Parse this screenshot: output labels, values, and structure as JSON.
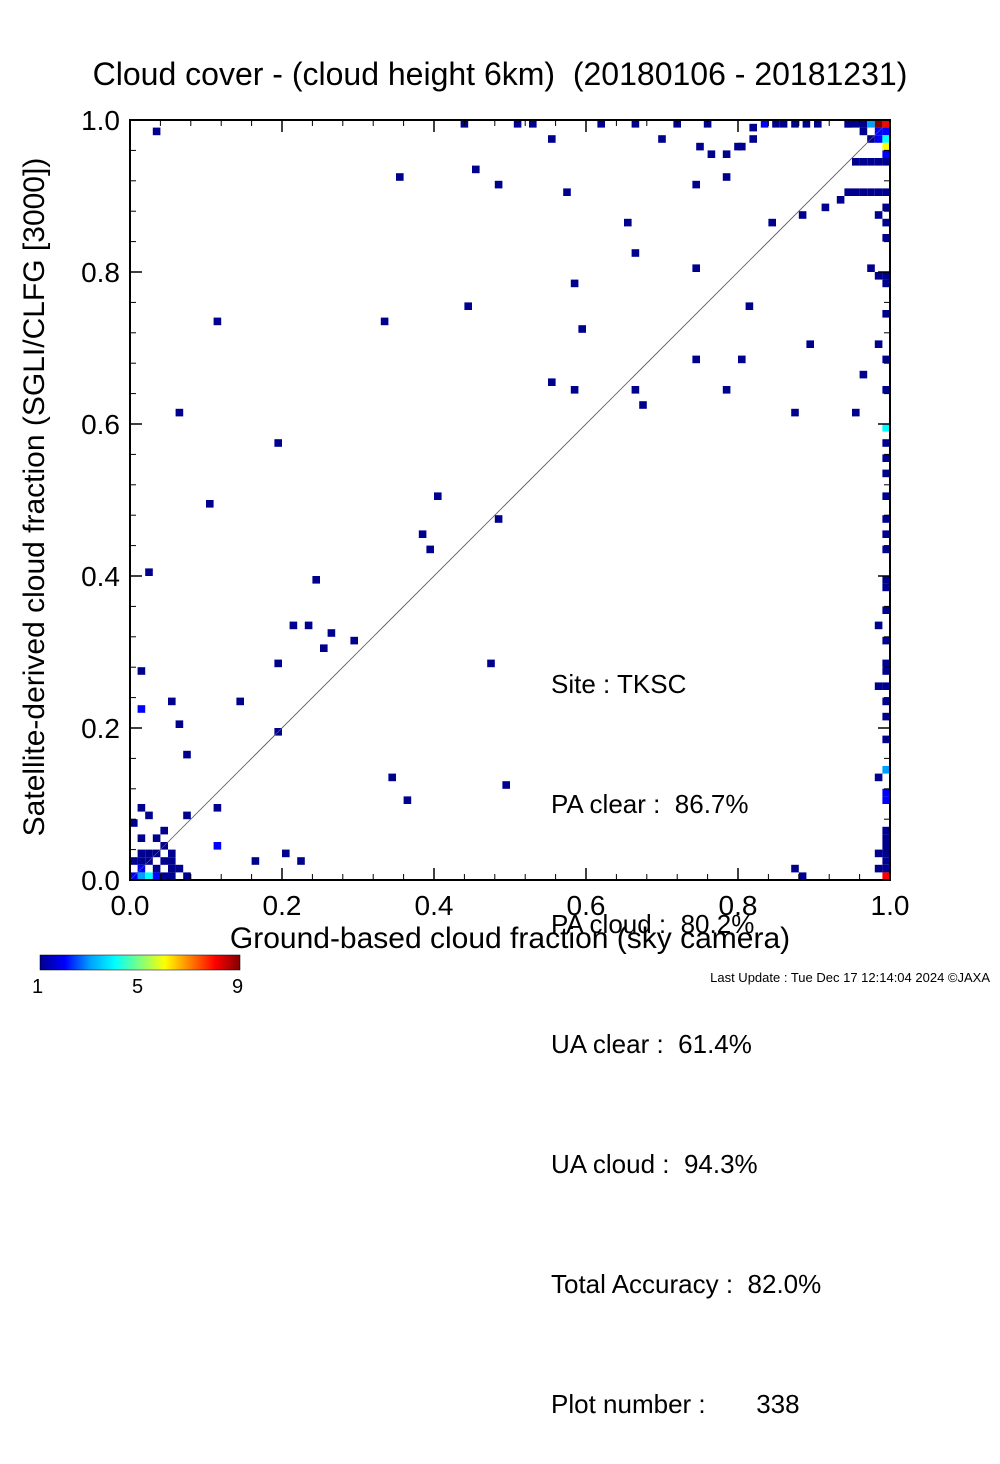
{
  "title": "Cloud cover - (cloud height 6km)  (20180106 - 20181231)",
  "footer": "Last Update : Tue Dec 17 12:14:04 2024  ©JAXA",
  "stats": {
    "site": "Site : TKSC",
    "pa_clear": "PA clear :  86.7%",
    "pa_cloud": "PA cloud :  80.2%",
    "ua_clear": "UA clear :  61.4%",
    "ua_cloud": "UA cloud :  94.3%",
    "total_accuracy": "Total Accuracy :  82.0%",
    "plot_number": "Plot number :       338"
  },
  "colorbar": {
    "min_label": "1",
    "mid_label": "5",
    "max_label": "9",
    "colors": [
      "#00008f",
      "#0000ff",
      "#00a0ff",
      "#00ffff",
      "#7fff7f",
      "#ffff00",
      "#ff8000",
      "#ff0000",
      "#800000"
    ]
  },
  "chart_data": {
    "type": "heatmap",
    "xlabel": "Ground-based cloud fraction (sky camera)",
    "ylabel": "Satellite-derived cloud fraction (SGLI/CLFG [3000])",
    "xlim": [
      0.0,
      1.0
    ],
    "ylim": [
      0.0,
      1.0
    ],
    "xticks": [
      "0.0",
      "0.2",
      "0.4",
      "0.6",
      "0.8",
      "1.0"
    ],
    "yticks": [
      "0.0",
      "0.2",
      "0.4",
      "0.6",
      "0.8",
      "1.0"
    ],
    "bin_size": 0.01,
    "reference_line": "1:1 diagonal",
    "color_scale": [
      1,
      9
    ],
    "points": [
      [
        0.035,
        0.985,
        1
      ],
      [
        0.44,
        0.995,
        1
      ],
      [
        0.51,
        0.995,
        1
      ],
      [
        0.53,
        0.995,
        1
      ],
      [
        0.62,
        0.995,
        1
      ],
      [
        0.665,
        0.995,
        1
      ],
      [
        0.72,
        0.995,
        1
      ],
      [
        0.76,
        0.995,
        1
      ],
      [
        0.82,
        0.99,
        1
      ],
      [
        0.835,
        0.995,
        2
      ],
      [
        0.86,
        0.995,
        1
      ],
      [
        0.875,
        0.995,
        1
      ],
      [
        0.89,
        0.995,
        1
      ],
      [
        0.905,
        0.995,
        1
      ],
      [
        0.945,
        0.995,
        2
      ],
      [
        0.955,
        0.995,
        1
      ],
      [
        0.965,
        0.995,
        1
      ],
      [
        0.975,
        0.995,
        3
      ],
      [
        0.985,
        0.995,
        9
      ],
      [
        0.995,
        0.995,
        8
      ],
      [
        0.965,
        0.985,
        1
      ],
      [
        0.985,
        0.985,
        2
      ],
      [
        0.995,
        0.985,
        2
      ],
      [
        0.975,
        0.975,
        1
      ],
      [
        0.985,
        0.975,
        2
      ],
      [
        0.995,
        0.975,
        4
      ],
      [
        0.995,
        0.965,
        6
      ],
      [
        0.995,
        0.955,
        2
      ],
      [
        0.955,
        0.945,
        1
      ],
      [
        0.965,
        0.945,
        1
      ],
      [
        0.975,
        0.945,
        1
      ],
      [
        0.985,
        0.945,
        1
      ],
      [
        0.995,
        0.945,
        1
      ],
      [
        0.955,
        0.905,
        1
      ],
      [
        0.965,
        0.905,
        1
      ],
      [
        0.975,
        0.905,
        1
      ],
      [
        0.985,
        0.905,
        1
      ],
      [
        0.995,
        0.905,
        1
      ],
      [
        0.945,
        0.905,
        1
      ],
      [
        0.935,
        0.895,
        1
      ],
      [
        0.995,
        0.885,
        1
      ],
      [
        0.985,
        0.875,
        1
      ],
      [
        0.995,
        0.865,
        1
      ],
      [
        0.995,
        0.845,
        1
      ],
      [
        0.975,
        0.805,
        1
      ],
      [
        0.985,
        0.795,
        1
      ],
      [
        0.995,
        0.795,
        1
      ],
      [
        0.995,
        0.785,
        1
      ],
      [
        0.995,
        0.745,
        1
      ],
      [
        0.985,
        0.705,
        1
      ],
      [
        0.995,
        0.685,
        1
      ],
      [
        0.995,
        0.645,
        1
      ],
      [
        0.995,
        0.595,
        4
      ],
      [
        0.995,
        0.575,
        1
      ],
      [
        0.995,
        0.555,
        1
      ],
      [
        0.995,
        0.535,
        1
      ],
      [
        0.995,
        0.505,
        1
      ],
      [
        0.995,
        0.475,
        1
      ],
      [
        0.995,
        0.455,
        1
      ],
      [
        0.995,
        0.435,
        1
      ],
      [
        0.995,
        0.395,
        1
      ],
      [
        0.995,
        0.385,
        1
      ],
      [
        0.995,
        0.355,
        1
      ],
      [
        0.985,
        0.335,
        1
      ],
      [
        0.995,
        0.315,
        1
      ],
      [
        0.995,
        0.285,
        1
      ],
      [
        0.995,
        0.275,
        1
      ],
      [
        0.985,
        0.255,
        1
      ],
      [
        0.995,
        0.255,
        1
      ],
      [
        0.995,
        0.235,
        1
      ],
      [
        0.995,
        0.215,
        1
      ],
      [
        0.995,
        0.185,
        1
      ],
      [
        0.995,
        0.145,
        3
      ],
      [
        0.985,
        0.135,
        1
      ],
      [
        0.995,
        0.115,
        2
      ],
      [
        0.995,
        0.105,
        2
      ],
      [
        0.995,
        0.065,
        1
      ],
      [
        0.995,
        0.055,
        1
      ],
      [
        0.995,
        0.045,
        1
      ],
      [
        0.995,
        0.035,
        1
      ],
      [
        0.995,
        0.025,
        1
      ],
      [
        0.995,
        0.015,
        1
      ],
      [
        0.995,
        0.005,
        8
      ],
      [
        0.985,
        0.035,
        1
      ],
      [
        0.985,
        0.015,
        1
      ],
      [
        0.885,
        0.005,
        1
      ],
      [
        0.875,
        0.015,
        1
      ],
      [
        0.945,
        0.995,
        1
      ],
      [
        0.85,
        0.995,
        1
      ],
      [
        0.82,
        0.975,
        1
      ],
      [
        0.8,
        0.965,
        1
      ],
      [
        0.805,
        0.965,
        1
      ],
      [
        0.785,
        0.955,
        1
      ],
      [
        0.75,
        0.965,
        1
      ],
      [
        0.765,
        0.955,
        1
      ],
      [
        0.785,
        0.925,
        1
      ],
      [
        0.745,
        0.915,
        1
      ],
      [
        0.7,
        0.975,
        1
      ],
      [
        0.555,
        0.975,
        1
      ],
      [
        0.455,
        0.935,
        1
      ],
      [
        0.355,
        0.925,
        1
      ],
      [
        0.485,
        0.915,
        1
      ],
      [
        0.575,
        0.905,
        1
      ],
      [
        0.915,
        0.885,
        1
      ],
      [
        0.885,
        0.875,
        1
      ],
      [
        0.845,
        0.865,
        1
      ],
      [
        0.655,
        0.865,
        1
      ],
      [
        0.665,
        0.825,
        1
      ],
      [
        0.745,
        0.805,
        1
      ],
      [
        0.585,
        0.785,
        1
      ],
      [
        0.445,
        0.755,
        1
      ],
      [
        0.815,
        0.755,
        1
      ],
      [
        0.115,
        0.735,
        1
      ],
      [
        0.335,
        0.735,
        1
      ],
      [
        0.595,
        0.725,
        1
      ],
      [
        0.895,
        0.705,
        1
      ],
      [
        0.745,
        0.685,
        1
      ],
      [
        0.805,
        0.685,
        1
      ],
      [
        0.965,
        0.665,
        1
      ],
      [
        0.555,
        0.655,
        1
      ],
      [
        0.585,
        0.645,
        1
      ],
      [
        0.665,
        0.645,
        1
      ],
      [
        0.785,
        0.645,
        1
      ],
      [
        0.675,
        0.625,
        1
      ],
      [
        0.065,
        0.615,
        1
      ],
      [
        0.875,
        0.615,
        1
      ],
      [
        0.955,
        0.615,
        1
      ],
      [
        0.195,
        0.575,
        1
      ],
      [
        0.105,
        0.495,
        1
      ],
      [
        0.405,
        0.505,
        1
      ],
      [
        0.485,
        0.475,
        1
      ],
      [
        0.385,
        0.455,
        1
      ],
      [
        0.395,
        0.435,
        1
      ],
      [
        0.025,
        0.405,
        1
      ],
      [
        0.245,
        0.395,
        1
      ],
      [
        0.215,
        0.335,
        1
      ],
      [
        0.235,
        0.335,
        1
      ],
      [
        0.265,
        0.325,
        1
      ],
      [
        0.295,
        0.315,
        1
      ],
      [
        0.255,
        0.305,
        1
      ],
      [
        0.195,
        0.285,
        1
      ],
      [
        0.475,
        0.285,
        1
      ],
      [
        0.015,
        0.275,
        1
      ],
      [
        0.055,
        0.235,
        1
      ],
      [
        0.145,
        0.235,
        1
      ],
      [
        0.015,
        0.225,
        2
      ],
      [
        0.065,
        0.205,
        1
      ],
      [
        0.195,
        0.195,
        1
      ],
      [
        0.075,
        0.165,
        1
      ],
      [
        0.345,
        0.135,
        1
      ],
      [
        0.495,
        0.125,
        1
      ],
      [
        0.365,
        0.105,
        1
      ],
      [
        0.115,
        0.095,
        1
      ],
      [
        0.075,
        0.085,
        1
      ],
      [
        0.015,
        0.095,
        1
      ],
      [
        0.025,
        0.085,
        1
      ],
      [
        0.005,
        0.075,
        1
      ],
      [
        0.045,
        0.065,
        1
      ],
      [
        0.015,
        0.055,
        1
      ],
      [
        0.035,
        0.055,
        1
      ],
      [
        0.045,
        0.045,
        1
      ],
      [
        0.115,
        0.045,
        2
      ],
      [
        0.205,
        0.035,
        1
      ],
      [
        0.005,
        0.025,
        1
      ],
      [
        0.015,
        0.025,
        1
      ],
      [
        0.025,
        0.025,
        1
      ],
      [
        0.035,
        0.035,
        1
      ],
      [
        0.045,
        0.025,
        1
      ],
      [
        0.055,
        0.035,
        1
      ],
      [
        0.055,
        0.025,
        1
      ],
      [
        0.165,
        0.025,
        1
      ],
      [
        0.225,
        0.025,
        1
      ],
      [
        0.015,
        0.015,
        2
      ],
      [
        0.035,
        0.015,
        1
      ],
      [
        0.055,
        0.015,
        1
      ],
      [
        0.065,
        0.015,
        1
      ],
      [
        0.015,
        0.005,
        3
      ],
      [
        0.025,
        0.005,
        4
      ],
      [
        0.035,
        0.005,
        2
      ],
      [
        0.045,
        0.005,
        1
      ],
      [
        0.005,
        0.005,
        2
      ],
      [
        0.075,
        0.005,
        1
      ],
      [
        0.015,
        0.035,
        1
      ],
      [
        0.025,
        0.035,
        1
      ],
      [
        0.055,
        0.005,
        1
      ]
    ]
  }
}
